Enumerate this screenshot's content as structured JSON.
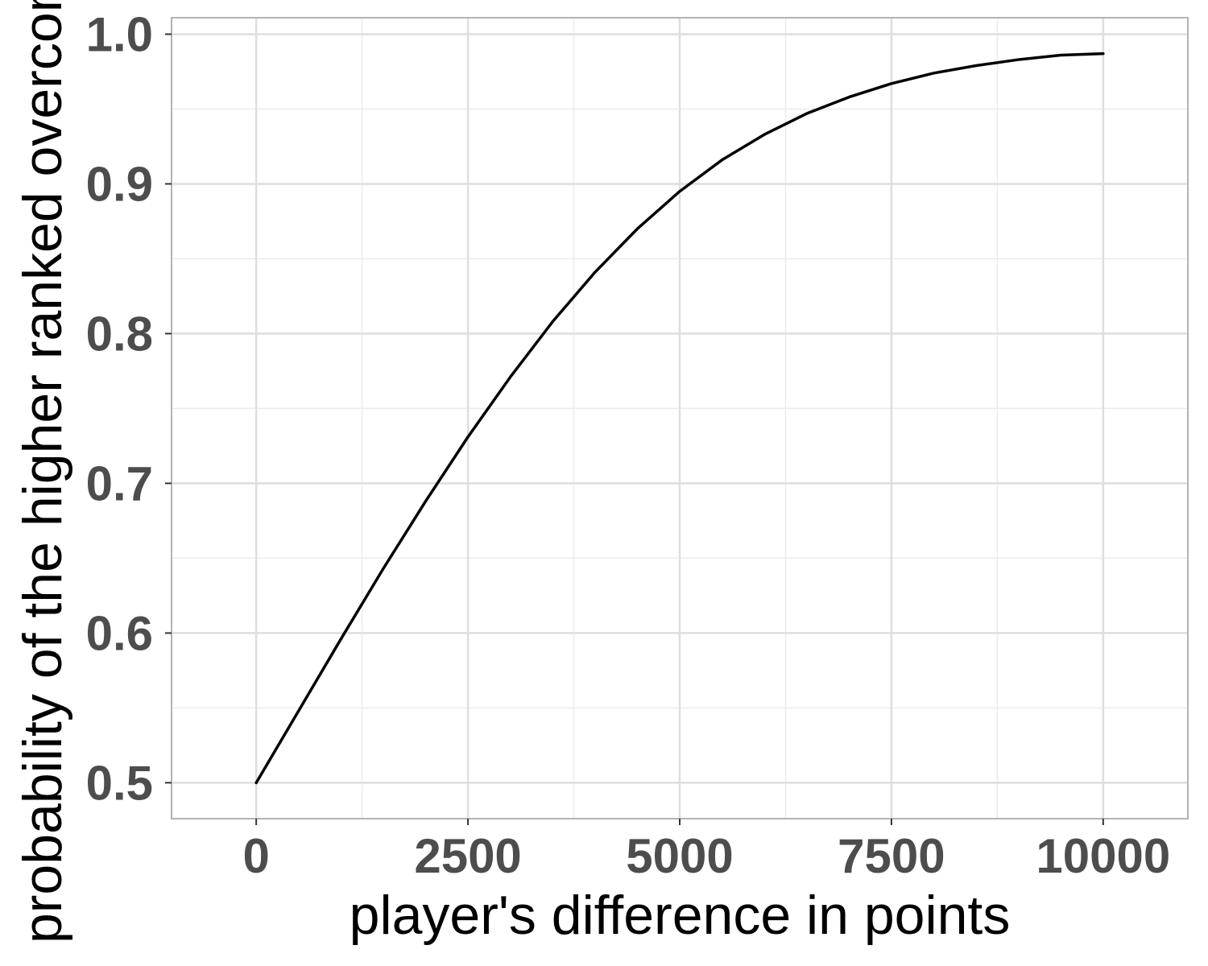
{
  "chart_data": {
    "type": "line",
    "title": "",
    "xlabel": "player's difference in points",
    "ylabel": "probability of the higher ranked overcoming",
    "xlim": [
      -1000,
      11000
    ],
    "ylim": [
      0.476,
      1.011
    ],
    "x_ticks": [
      0,
      2500,
      5000,
      7500,
      10000
    ],
    "x_tick_labels": [
      "0",
      "2500",
      "5000",
      "7500",
      "10000"
    ],
    "y_ticks": [
      0.5,
      0.6,
      0.7,
      0.8,
      0.9,
      1.0
    ],
    "y_tick_labels": [
      "0.5",
      "0.6",
      "0.7",
      "0.8",
      "0.9",
      "1.0"
    ],
    "grid": true,
    "legend": "none",
    "series": [
      {
        "line_color": "#000000",
        "x": [
          0,
          500,
          1000,
          1500,
          2000,
          2500,
          3000,
          3500,
          4000,
          4500,
          5000,
          5500,
          6000,
          6500,
          7000,
          7500,
          8000,
          8500,
          9000,
          9500,
          10000
        ],
        "y": [
          0.5,
          0.548,
          0.596,
          0.643,
          0.688,
          0.731,
          0.771,
          0.808,
          0.841,
          0.87,
          0.895,
          0.916,
          0.933,
          0.947,
          0.958,
          0.967,
          0.974,
          0.979,
          0.983,
          0.986,
          0.987
        ]
      }
    ]
  }
}
